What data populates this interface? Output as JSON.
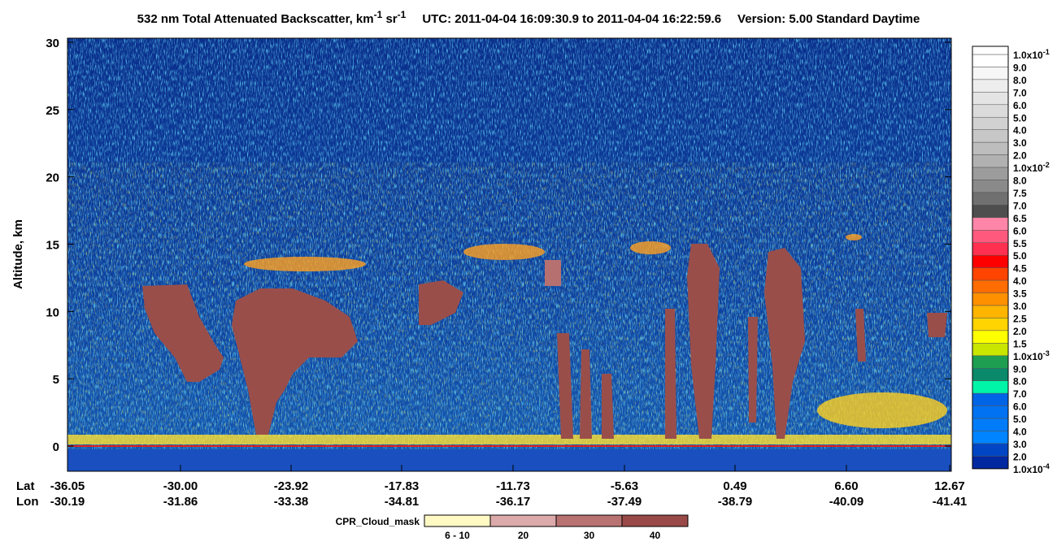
{
  "chart_data": {
    "type": "curtain",
    "title": [
      "532 nm Total Attenuated Backscatter, km",
      "-1",
      " sr",
      "-1"
    ],
    "subtitle": "UTC:  2011-04-04 16:09:30.9  to  2011-04-04 16:22:59.6",
    "version": "Version: 5.00  Standard  Daytime",
    "ylabel": "Altitude, km",
    "ylim": [
      -1.87,
      30.3
    ],
    "yticks": [
      0,
      5,
      10,
      15,
      20,
      25,
      30
    ],
    "x_rows": [
      {
        "name": "Lat",
        "labels": [
          "-36.05",
          "-30.00",
          "-23.92",
          "-17.83",
          "-11.73",
          "-5.63",
          "0.49",
          "6.60",
          "12.67"
        ]
      },
      {
        "name": "Lon",
        "labels": [
          "-30.19",
          "-31.86",
          "-33.38",
          "-34.81",
          "-36.17",
          "-37.49",
          "-38.79",
          "-40.09",
          "-41.41"
        ]
      }
    ],
    "colorbar": {
      "labels": [
        {
          "text": "1.0x10",
          "sup": "-1"
        },
        "9.0",
        "8.0",
        "7.0",
        "6.0",
        "5.0",
        "4.0",
        "3.0",
        "2.0",
        {
          "text": "1.0x10",
          "sup": "-2"
        },
        "8.0",
        "7.5",
        "7.0",
        "6.5",
        "6.0",
        "5.5",
        "5.0",
        "4.5",
        "4.0",
        "3.5",
        "3.0",
        "2.5",
        "2.0",
        "1.5",
        {
          "text": "1.0x10",
          "sup": "-3"
        },
        "9.0",
        "8.0",
        "7.0",
        "6.0",
        "5.0",
        "4.0",
        "3.0",
        "2.0",
        {
          "text": "1.0x10",
          "sup": "-4"
        }
      ],
      "colors": [
        "#ffffff",
        "#f6f6f6",
        "#ededed",
        "#e4e4e4",
        "#dbdbdb",
        "#d1d1d1",
        "#c7c7c7",
        "#bdbdbd",
        "#b1b1b1",
        "#9c9c9c",
        "#8a8a8a",
        "#707070",
        "#4e4e4e",
        "#ff86a8",
        "#ff5a7e",
        "#ff3050",
        "#ff0000",
        "#ff4400",
        "#ff6c00",
        "#ff9000",
        "#ffb400",
        "#ffd400",
        "#ffff00",
        "#c8e600",
        "#1e9e50",
        "#0a8a6a",
        "#00f5a8",
        "#0064e6",
        "#0072f2",
        "#007cf8",
        "#0084ff",
        "#0046c4",
        "#0028a0"
      ]
    },
    "mask_legend": {
      "title": "CPR_Cloud_mask",
      "labels": [
        "6 - 10",
        "20",
        "30",
        "40"
      ],
      "colors": [
        "#fff9c4",
        "#dcaaaa",
        "#b87272",
        "#994a48"
      ]
    }
  }
}
